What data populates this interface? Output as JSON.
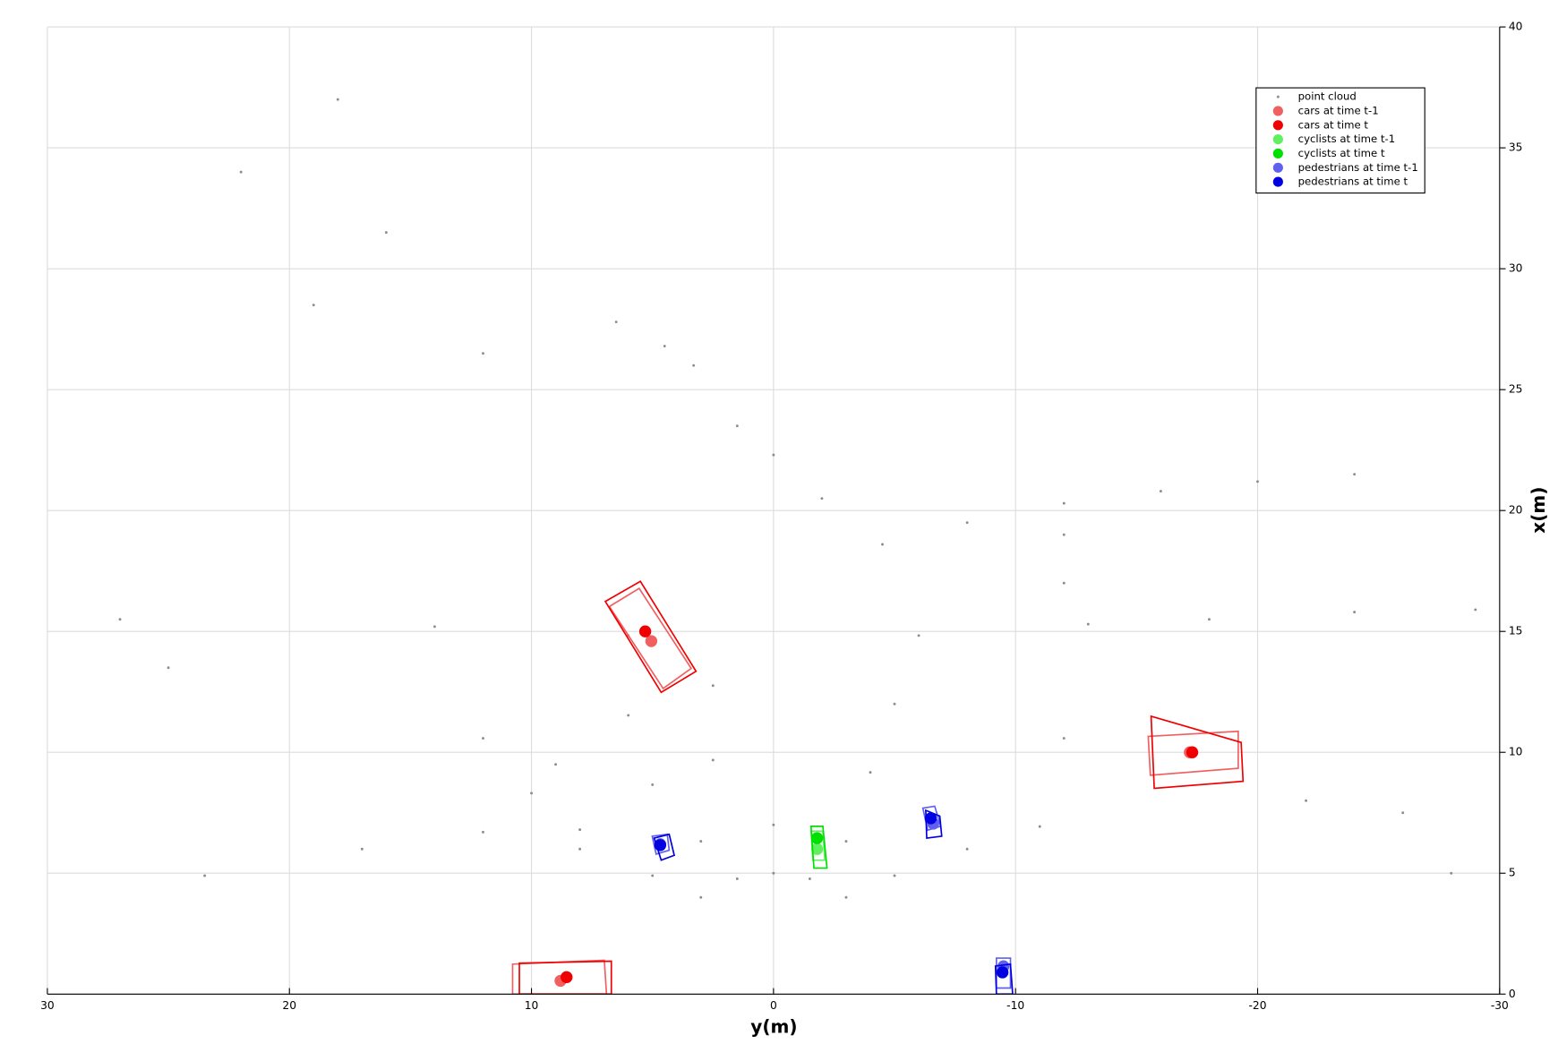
{
  "chart_data": {
    "type": "scatter",
    "xlabel": "y(m)",
    "ylabel": "x(m)",
    "xlim": [
      30,
      -30
    ],
    "xticks": [
      30,
      20,
      10,
      0,
      -10,
      -20,
      -30
    ],
    "ylim": [
      0,
      40
    ],
    "yticks": [
      0,
      5,
      10,
      15,
      20,
      25,
      30,
      35,
      40
    ],
    "grid": true,
    "legend_loc": "upper right",
    "y_axis_side": "right",
    "series": [
      {
        "name": "point cloud",
        "color": "#8c8c8c",
        "x": [
          3,
          1.5,
          0,
          -1.5,
          -3,
          5,
          3,
          0,
          -3,
          -5,
          8,
          5,
          2.5,
          -4,
          -8,
          10,
          6,
          2.5,
          -5,
          -11,
          12,
          6,
          -6,
          -12,
          -4.5,
          -8,
          -12,
          -16,
          -20,
          -24,
          1.5,
          0,
          -2,
          6.5,
          4.5,
          3.3,
          23.5,
          17,
          12,
          8,
          16,
          19,
          12,
          18,
          22,
          -13,
          -18,
          -24,
          -29,
          -12,
          -12,
          27,
          25,
          14,
          9,
          -22,
          -26,
          -28
        ],
        "values": [
          4.0,
          4.77,
          5,
          4.77,
          4.0,
          4.9,
          6.32,
          7,
          6.32,
          4.9,
          6,
          8.66,
          9.68,
          9.17,
          6,
          8.31,
          11.53,
          12.76,
          12,
          6.93,
          10.58,
          14.83,
          14.83,
          10.58,
          18.6,
          19.5,
          20.3,
          20.8,
          21.2,
          21.5,
          23.5,
          22.3,
          20.5,
          27.8,
          26.8,
          26,
          4.9,
          6,
          6.7,
          6.8,
          31.5,
          28.5,
          26.5,
          37,
          34,
          15.3,
          15.5,
          15.8,
          15.9,
          17,
          19,
          15.5,
          13.5,
          15.2,
          9.5,
          8,
          7.5,
          5
        ]
      },
      {
        "name": "cars at time t-1",
        "color": "#f06060",
        "x": [
          5.05,
          -17.2,
          8.8
        ],
        "values": [
          14.6,
          10.0,
          0.55
        ],
        "boxes": [
          [
            [
              6.78,
              16.03
            ],
            [
              5.55,
              16.78
            ],
            [
              3.4,
              13.47
            ],
            [
              4.56,
              12.64
            ]
          ],
          [
            [
              -15.48,
              10.66
            ],
            [
              -19.2,
              10.87
            ],
            [
              -19.2,
              9.34
            ],
            [
              -15.57,
              9.05
            ]
          ],
          [
            [
              10.78,
              1.24
            ],
            [
              6.99,
              1.4
            ],
            [
              6.9,
              0
            ],
            [
              10.78,
              0
            ]
          ]
        ]
      },
      {
        "name": "cars at time t",
        "color": "#f00000",
        "x": [
          5.3,
          -17.3,
          8.55
        ],
        "values": [
          15.0,
          10.0,
          0.7
        ],
        "boxes": [
          [
            [
              6.95,
              16.24
            ],
            [
              5.5,
              17.07
            ],
            [
              3.2,
              13.35
            ],
            [
              4.64,
              12.48
            ]
          ],
          [
            [
              -15.6,
              11.49
            ],
            [
              -19.32,
              10.41
            ],
            [
              -19.4,
              8.8
            ],
            [
              -15.73,
              8.51
            ]
          ],
          [
            [
              10.5,
              1.28
            ],
            [
              6.7,
              1.36
            ],
            [
              6.7,
              0
            ],
            [
              10.5,
              0
            ]
          ]
        ]
      },
      {
        "name": "cyclists at time t-1",
        "color": "#60f060",
        "x": [
          -1.8
        ],
        "values": [
          6.0
        ],
        "boxes": [
          [
            [
              -1.55,
              6.74
            ],
            [
              -2.04,
              6.74
            ],
            [
              -2.12,
              5.54
            ],
            [
              -1.63,
              5.54
            ]
          ]
        ]
      },
      {
        "name": "cyclists at time t",
        "color": "#00e000",
        "x": [
          -1.8
        ],
        "values": [
          6.45
        ],
        "boxes": [
          [
            [
              -1.55,
              6.94
            ],
            [
              -2.04,
              6.94
            ],
            [
              -2.21,
              5.21
            ],
            [
              -1.67,
              5.21
            ]
          ]
        ]
      },
      {
        "name": "pedestrians at time t-1",
        "color": "#6060f0",
        "x": [
          4.68,
          -6.6,
          -9.5
        ],
        "values": [
          6.2,
          7.05,
          1.15
        ],
        "boxes": [
          [
            [
              5.01,
              6.53
            ],
            [
              4.39,
              6.61
            ],
            [
              4.31,
              5.95
            ],
            [
              4.85,
              5.79
            ]
          ],
          [
            [
              -6.17,
              7.69
            ],
            [
              -6.66,
              7.77
            ],
            [
              -6.91,
              6.94
            ],
            [
              -6.37,
              6.78
            ]
          ],
          [
            [
              -9.21,
              1.49
            ],
            [
              -9.79,
              1.49
            ],
            [
              -9.79,
              0.25
            ],
            [
              -9.21,
              0.25
            ]
          ]
        ]
      },
      {
        "name": "pedestrians at time t",
        "color": "#0000e0",
        "x": [
          4.68,
          -6.5,
          -9.46
        ],
        "values": [
          6.16,
          7.27,
          0.9
        ],
        "boxes": [
          [
            [
              4.93,
              6.45
            ],
            [
              4.31,
              6.61
            ],
            [
              4.1,
              5.74
            ],
            [
              4.64,
              5.54
            ]
          ],
          [
            [
              -6.29,
              7.6
            ],
            [
              -6.87,
              7.36
            ],
            [
              -6.95,
              6.53
            ],
            [
              -6.33,
              6.45
            ]
          ],
          [
            [
              -9.17,
              1.16
            ],
            [
              -9.79,
              1.24
            ],
            [
              -9.88,
              0
            ],
            [
              -9.21,
              0
            ]
          ]
        ]
      }
    ]
  }
}
